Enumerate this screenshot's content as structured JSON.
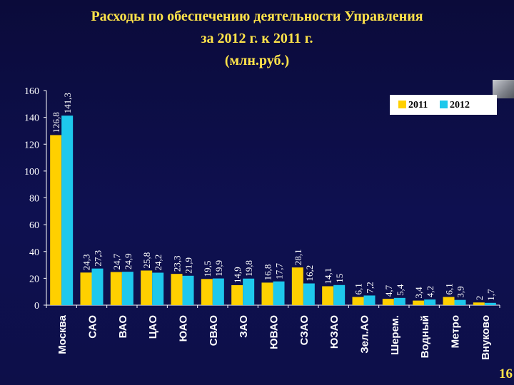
{
  "title_lines": [
    "Расходы по обеспечению деятельности Управления",
    "за 2012 г.  к 2011 г.",
    "(млн.руб.)"
  ],
  "page_number": "16",
  "colors": {
    "background": "#0d0f49",
    "title": "#ffe34a",
    "series_2011": "#ffd000",
    "series_2012": "#1ec8ec"
  },
  "chart_data": {
    "type": "bar",
    "categories": [
      "Москва",
      "САО",
      "ВАО",
      "ЦАО",
      "ЮАО",
      "СВАО",
      "ЗАО",
      "ЮВАО",
      "СЗАО",
      "ЮЗАО",
      "Зел.АО",
      "Шерем.",
      "Водный",
      "Метро",
      "Внуково"
    ],
    "series": [
      {
        "name": "2011",
        "values": [
          126.8,
          24.3,
          24.7,
          25.8,
          23.3,
          19.5,
          14.9,
          16.8,
          28.1,
          14.1,
          6.1,
          4.7,
          3.4,
          6.1,
          2
        ],
        "labels": [
          "126,8",
          "24,3",
          "24,7",
          "25,8",
          "23,3",
          "19,5",
          "14,9",
          "16,8",
          "28,1",
          "14,1",
          "6,1",
          "4,7",
          "3,4",
          "6,1",
          "2"
        ]
      },
      {
        "name": "2012",
        "values": [
          141.3,
          27.3,
          24.9,
          24.2,
          21.9,
          19.9,
          19.8,
          17.7,
          16.2,
          15,
          7.2,
          5.4,
          4.2,
          3.9,
          1.7
        ],
        "labels": [
          "141,3",
          "27,3",
          "24,9",
          "24,2",
          "21,9",
          "19,9",
          "19,8",
          "17,7",
          "16,2",
          "15",
          "7,2",
          "5,4",
          "4,2",
          "3,9",
          "1,7"
        ]
      }
    ],
    "y_ticks": [
      "0",
      "20",
      "40",
      "60",
      "80",
      "100",
      "120",
      "140",
      "160"
    ],
    "ylim": [
      0,
      160
    ],
    "grid": false,
    "legend_position": "top-right"
  }
}
